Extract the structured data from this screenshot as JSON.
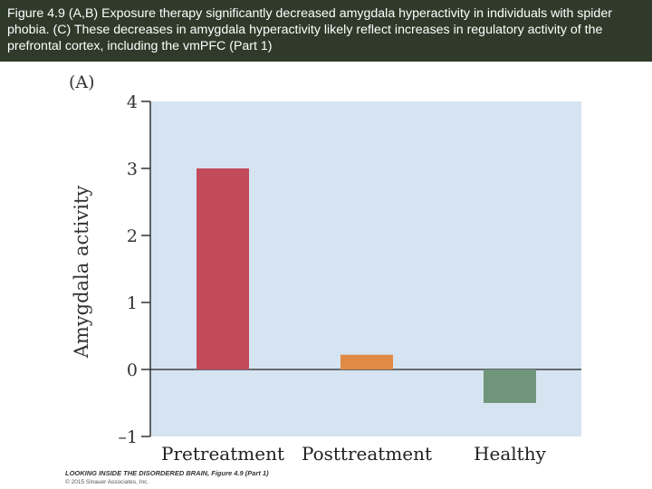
{
  "caption": "Figure 4.9 (A,B) Exposure therapy significantly decreased amygdala hyperactivity in individuals with spider phobia. (C) These decreases in amygdala hyperactivity likely reflect increases in regulatory activity of the prefrontal cortex, including the vmPFC (Part 1)",
  "panel_label": "(A)",
  "footer": {
    "book": "LOOKING INSIDE THE DISORDERED BRAIN, Figure 4.9 (Part 1)",
    "copyright": "© 2015 Sinauer Associates, Inc."
  },
  "colors": {
    "plot_background": "#d5e4f0",
    "pretreatment": "#c24b5a",
    "posttreatment": "#e08a45",
    "healthy": "#6f957a"
  },
  "chart_data": {
    "type": "bar",
    "title": "",
    "xlabel": "",
    "ylabel": "Amygdala activity",
    "categories": [
      "Pretreatment",
      "Posttreatment",
      "Healthy"
    ],
    "values": [
      3.0,
      0.22,
      -0.5
    ],
    "ylim": [
      -1,
      4
    ],
    "yticks": [
      4,
      3,
      2,
      1,
      0,
      -1
    ],
    "ytick_labels": [
      "4",
      "3",
      "2",
      "1",
      "0",
      "–1"
    ],
    "grid": false,
    "legend": "none"
  }
}
